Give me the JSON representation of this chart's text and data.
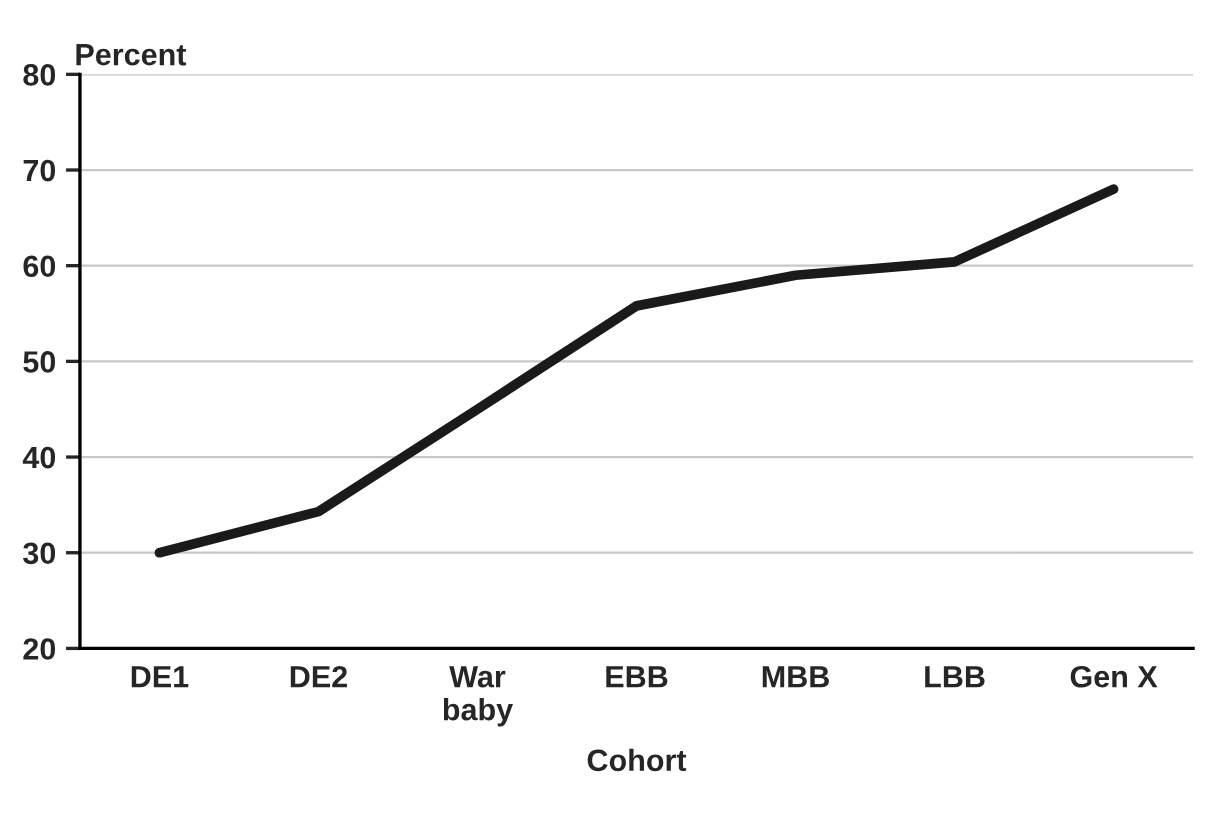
{
  "chart_data": {
    "type": "line",
    "xlabel": "Cohort",
    "ylabel": "Percent",
    "categories": [
      "DE1",
      "DE2",
      "War\nbaby",
      "EBB",
      "MBB",
      "LBB",
      "Gen X"
    ],
    "series": [
      {
        "color": "#1a1a1a",
        "values": [
          30,
          34.3,
          45,
          55.8,
          59,
          60.4,
          68
        ]
      }
    ],
    "ylim": [
      20,
      80
    ],
    "yticks": [
      20,
      30,
      40,
      50,
      60,
      70,
      80
    ],
    "grid": "y",
    "marker": "none",
    "line_style": "solid"
  }
}
